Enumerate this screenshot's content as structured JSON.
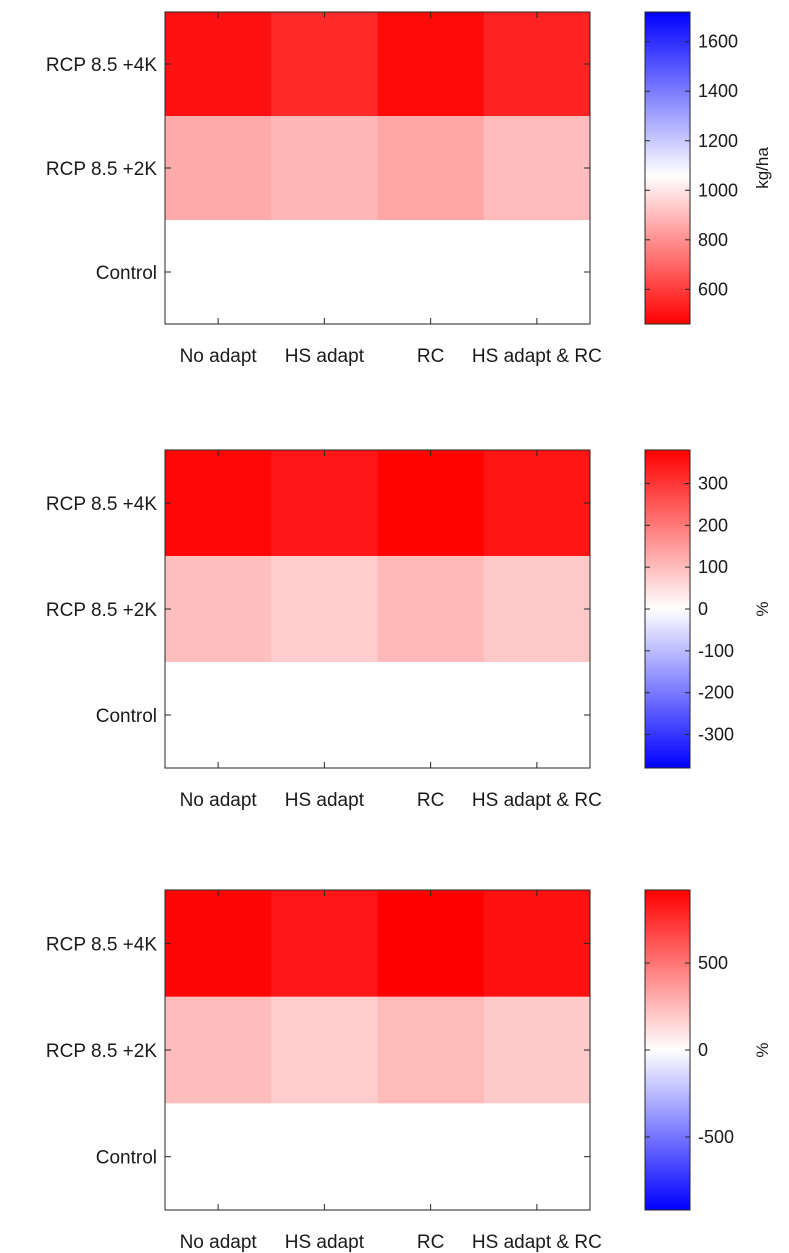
{
  "chart_data": [
    {
      "type": "heatmap",
      "x_categories": [
        "No adapt",
        "HS adapt",
        "RC",
        "HS adapt & RC"
      ],
      "y_categories": [
        "RCP 8.5 +4K",
        "RCP 8.5 +2K",
        "Control"
      ],
      "values": [
        [
          500,
          560,
          480,
          540
        ],
        [
          860,
          890,
          850,
          900
        ],
        [
          1060,
          1060,
          1060,
          1060
        ]
      ],
      "colorbar": {
        "range": [
          460,
          1720
        ],
        "ticks": [
          600,
          800,
          1000,
          1200,
          1400,
          1600
        ],
        "label": "kg/ha",
        "colormap": [
          {
            "v": 460,
            "color": "#ff0000"
          },
          {
            "v": 1060,
            "color": "#ffffff"
          },
          {
            "v": 1720,
            "color": "#0000ff"
          }
        ]
      }
    },
    {
      "type": "heatmap",
      "x_categories": [
        "No adapt",
        "HS adapt",
        "RC",
        "HS adapt & RC"
      ],
      "y_categories": [
        "RCP 8.5 +4K",
        "RCP 8.5 +2K",
        "Control"
      ],
      "values": [
        [
          370,
          345,
          375,
          350
        ],
        [
          95,
          75,
          105,
          80
        ],
        [
          0,
          0,
          0,
          0
        ]
      ],
      "colorbar": {
        "range": [
          -380,
          380
        ],
        "ticks": [
          -300,
          -200,
          -100,
          0,
          100,
          200,
          300
        ],
        "label": "%",
        "colormap": [
          {
            "v": -380,
            "color": "#0000ff"
          },
          {
            "v": 0,
            "color": "#ffffff"
          },
          {
            "v": 380,
            "color": "#ff0000"
          }
        ]
      }
    },
    {
      "type": "heatmap",
      "x_categories": [
        "No adapt",
        "HS adapt",
        "RC",
        "HS adapt & RC"
      ],
      "y_categories": [
        "RCP 8.5 +4K",
        "RCP 8.5 +2K",
        "Control"
      ],
      "values": [
        [
          900,
          840,
          920,
          860
        ],
        [
          240,
          180,
          250,
          190
        ],
        [
          0,
          0,
          0,
          0
        ]
      ],
      "colorbar": {
        "range": [
          -920,
          920
        ],
        "ticks": [
          -500,
          0,
          500
        ],
        "label": "%",
        "colormap": [
          {
            "v": -920,
            "color": "#0000ff"
          },
          {
            "v": 0,
            "color": "#ffffff"
          },
          {
            "v": 920,
            "color": "#ff0000"
          }
        ]
      }
    }
  ]
}
